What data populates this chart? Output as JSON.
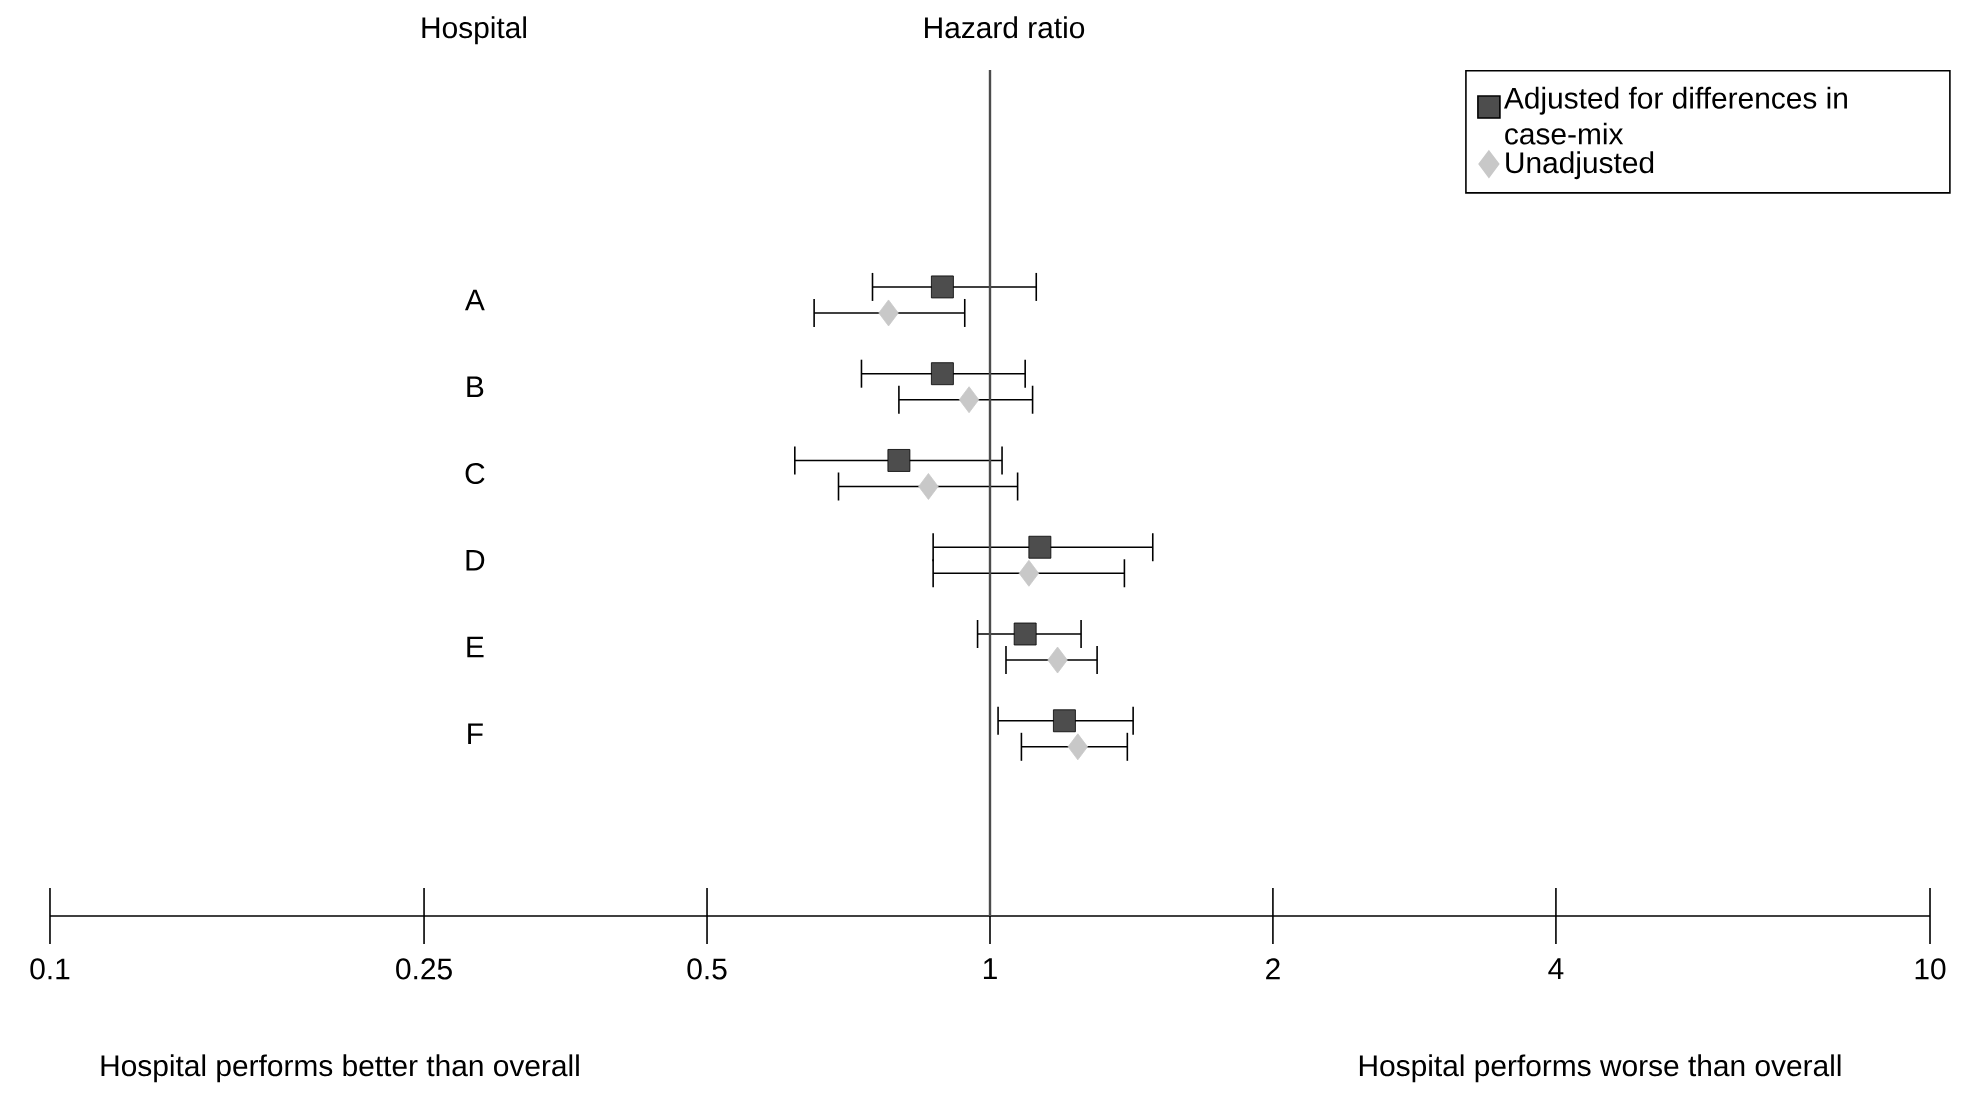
{
  "chart_data": {
    "type": "scatter",
    "orientation": "horizontal",
    "categories": [
      "A",
      "B",
      "C",
      "D",
      "E",
      "F"
    ],
    "series": [
      {
        "name": "Adjusted for differences in case-mix",
        "color": "#4d4d4d",
        "marker": "square",
        "values": [
          0.89,
          0.89,
          0.8,
          1.13,
          1.09,
          1.2
        ],
        "errors": [
          [
            0.75,
            1.12
          ],
          [
            0.73,
            1.09
          ],
          [
            0.62,
            1.03
          ],
          [
            0.87,
            1.49
          ],
          [
            0.97,
            1.25
          ],
          [
            1.02,
            1.42
          ]
        ]
      },
      {
        "name": "Unadjusted",
        "color": "#c8c8c8",
        "marker": "diamond",
        "values": [
          0.78,
          0.95,
          0.86,
          1.1,
          1.18,
          1.24
        ],
        "errors": [
          [
            0.65,
            0.94
          ],
          [
            0.8,
            1.11
          ],
          [
            0.69,
            1.07
          ],
          [
            0.87,
            1.39
          ],
          [
            1.04,
            1.3
          ],
          [
            1.08,
            1.4
          ]
        ]
      }
    ],
    "log": "x",
    "xlim": [
      0.1,
      10
    ],
    "xticks": [
      0.1,
      0.25,
      0.5,
      1,
      2,
      4,
      10
    ],
    "ref_lines": [
      {
        "axis": "x",
        "value": 1
      }
    ],
    "legend": "top right",
    "grid": false,
    "annotations": [
      "Hospital",
      "Hazard ratio",
      "Hospital performs better than overall",
      "Hospital performs worse than overall"
    ]
  }
}
